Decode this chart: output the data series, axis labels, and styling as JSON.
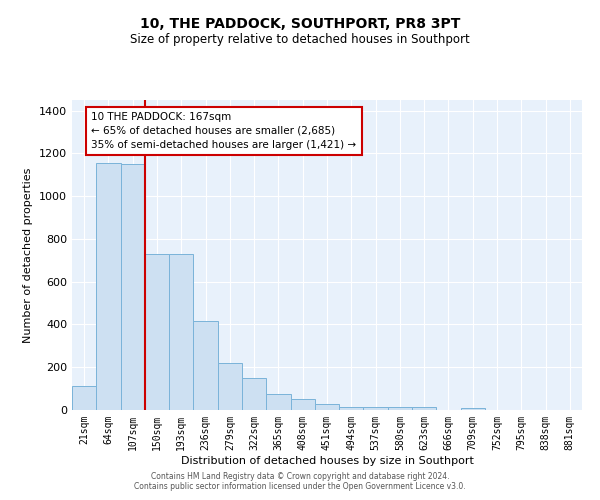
{
  "title": "10, THE PADDOCK, SOUTHPORT, PR8 3PT",
  "subtitle": "Size of property relative to detached houses in Southport",
  "xlabel": "Distribution of detached houses by size in Southport",
  "ylabel": "Number of detached properties",
  "bar_labels": [
    "21sqm",
    "64sqm",
    "107sqm",
    "150sqm",
    "193sqm",
    "236sqm",
    "279sqm",
    "322sqm",
    "365sqm",
    "408sqm",
    "451sqm",
    "494sqm",
    "537sqm",
    "580sqm",
    "623sqm",
    "666sqm",
    "709sqm",
    "752sqm",
    "795sqm",
    "838sqm",
    "881sqm"
  ],
  "bar_values": [
    110,
    1155,
    1150,
    730,
    730,
    415,
    220,
    150,
    75,
    50,
    30,
    15,
    15,
    15,
    15,
    0,
    10,
    0,
    0,
    0,
    0
  ],
  "bar_color": "#cde0f2",
  "bar_edge_color": "#7ab3d9",
  "vline_x_idx": 3,
  "vline_color": "#cc0000",
  "annotation_text": "10 THE PADDOCK: 167sqm\n← 65% of detached houses are smaller (2,685)\n35% of semi-detached houses are larger (1,421) →",
  "annotation_box_color": "#ffffff",
  "annotation_box_edge": "#cc0000",
  "ylim": [
    0,
    1450
  ],
  "yticks": [
    0,
    200,
    400,
    600,
    800,
    1000,
    1200,
    1400
  ],
  "footer_line1": "Contains HM Land Registry data © Crown copyright and database right 2024.",
  "footer_line2": "Contains public sector information licensed under the Open Government Licence v3.0.",
  "background_color": "#e8f1fb"
}
